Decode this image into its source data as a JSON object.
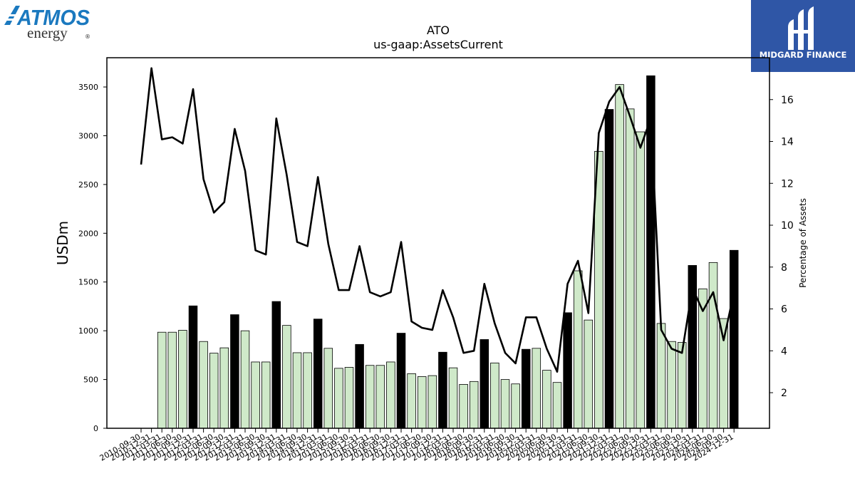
{
  "logos": {
    "left": {
      "word": "ATMOS",
      "sub": "energy",
      "mark": "®"
    },
    "right": {
      "name": "MIDGARD FINANCE",
      "bg": "#2f56a6"
    }
  },
  "chart_data": {
    "type": "bar",
    "title": "ATO",
    "subtitle": "us-gaap:AssetsCurrent",
    "ylabel": "USDm",
    "y2label": "Percentage of Assets",
    "ylim": [
      0,
      3800
    ],
    "y2lim": [
      0.3,
      18
    ],
    "yticks": [
      0,
      500,
      1000,
      1500,
      2000,
      2500,
      3000,
      3500
    ],
    "y2ticks": [
      2,
      4,
      6,
      8,
      10,
      12,
      14,
      16
    ],
    "colors": {
      "annual": "#000000",
      "quarterly": "#cfe9c9",
      "line": "#000000"
    },
    "categories": [
      "2010-09-30",
      "2010-12-31",
      "2011-03-31",
      "2011-06-30",
      "2011-09-30",
      "2011-12-31",
      "2012-03-31",
      "2012-06-30",
      "2012-09-30",
      "2012-12-31",
      "2013-03-31",
      "2013-06-30",
      "2013-09-30",
      "2013-12-31",
      "2014-03-31",
      "2014-06-30",
      "2014-09-30",
      "2014-12-31",
      "2015-03-31",
      "2015-06-30",
      "2015-09-30",
      "2015-12-31",
      "2016-03-31",
      "2016-06-30",
      "2016-09-30",
      "2016-12-31",
      "2017-03-31",
      "2017-06-30",
      "2017-09-30",
      "2017-12-31",
      "2018-03-31",
      "2018-06-30",
      "2018-09-30",
      "2018-12-31",
      "2019-03-31",
      "2019-06-30",
      "2019-09-30",
      "2019-12-31",
      "2020-03-31",
      "2020-06-30",
      "2020-09-30",
      "2020-12-31",
      "2021-03-31",
      "2021-06-30",
      "2021-09-30",
      "2021-12-31",
      "2022-03-31",
      "2022-06-30",
      "2022-09-30",
      "2022-12-31",
      "2023-03-31",
      "2023-06-30",
      "2023-09-30",
      "2023-12-31",
      "2024-03-31",
      "2024-06-30",
      "2024-09-30",
      "2024-12-31"
    ],
    "series": [
      {
        "values": [
          null,
          null,
          985,
          985,
          1005,
          1255,
          890,
          770,
          825,
          1165,
          1000,
          680,
          680,
          1300,
          1055,
          775,
          775,
          1120,
          820,
          615,
          625,
          860,
          645,
          645,
          680,
          975,
          560,
          530,
          540,
          780,
          620,
          450,
          480,
          910,
          670,
          500,
          455,
          810,
          820,
          595,
          470,
          1185,
          1615,
          1110,
          2840,
          3270,
          3525,
          3275,
          3040,
          3615,
          1075,
          890,
          880,
          1670,
          1430,
          1700,
          1125,
          1825
        ],
        "annual": [
          false,
          false,
          false,
          false,
          false,
          true,
          false,
          false,
          false,
          true,
          false,
          false,
          false,
          true,
          false,
          false,
          false,
          true,
          false,
          false,
          false,
          true,
          false,
          false,
          false,
          true,
          false,
          false,
          false,
          true,
          false,
          false,
          false,
          true,
          false,
          false,
          false,
          true,
          false,
          false,
          false,
          true,
          false,
          false,
          false,
          true,
          false,
          false,
          false,
          true,
          false,
          false,
          false,
          true,
          false,
          false,
          false,
          true
        ]
      },
      {
        "axis": "right",
        "values": [
          12.9,
          17.5,
          14.1,
          14.2,
          13.9,
          16.5,
          12.2,
          10.6,
          11.1,
          14.6,
          12.6,
          8.8,
          8.6,
          15.1,
          12.4,
          9.2,
          9.0,
          12.3,
          9.1,
          6.9,
          6.9,
          9.0,
          6.8,
          6.6,
          6.8,
          9.2,
          5.4,
          5.1,
          5.0,
          6.9,
          5.6,
          3.9,
          4.0,
          7.2,
          5.3,
          3.9,
          3.4,
          5.6,
          5.6,
          4.1,
          3.0,
          7.2,
          8.3,
          5.8,
          14.4,
          15.9,
          16.6,
          15.2,
          13.7,
          15.1,
          5.0,
          4.1,
          3.9,
          7.0,
          5.9,
          6.8,
          4.5,
          6.8
        ]
      }
    ]
  }
}
